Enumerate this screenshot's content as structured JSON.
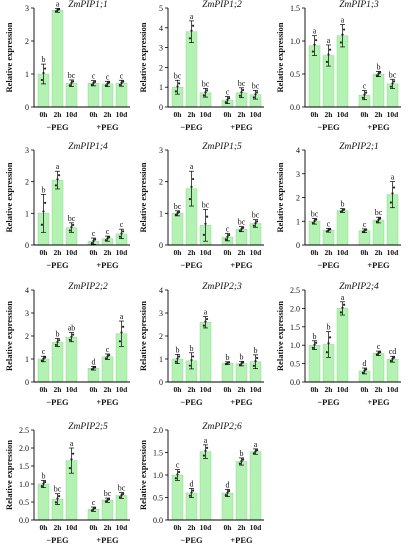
{
  "figure": {
    "bar_color": "#b3f2b3",
    "bar_edge": "#7ad87a",
    "axis_color": "#000000"
  },
  "chart_data": [
    {
      "type": "bar",
      "title": "ZmPIP1;1",
      "ylabel": "Relative expression",
      "ylim": [
        0,
        3
      ],
      "yticks": [
        "0",
        "1",
        "2",
        "3"
      ],
      "categories": [
        "0h",
        "2h",
        "10d",
        "0h",
        "2h",
        "10d"
      ],
      "groups": [
        "−PEG",
        "+PEG"
      ],
      "values": [
        1.0,
        2.93,
        0.72,
        0.72,
        0.7,
        0.72
      ],
      "errors": [
        0.3,
        0.06,
        0.1,
        0.08,
        0.08,
        0.09
      ],
      "letters": [
        "b",
        "a",
        "bc",
        "c",
        "c",
        "c"
      ]
    },
    {
      "type": "bar",
      "title": "ZmPIP1;2",
      "ylabel": "Relative expression",
      "ylim": [
        0,
        5
      ],
      "yticks": [
        "0",
        "1",
        "2",
        "3",
        "4",
        "5"
      ],
      "categories": [
        "0h",
        "2h",
        "10d",
        "0h",
        "2h",
        "10d"
      ],
      "groups": [
        "−PEG",
        "+PEG"
      ],
      "values": [
        1.0,
        3.8,
        0.72,
        0.35,
        0.72,
        0.62
      ],
      "errors": [
        0.35,
        0.55,
        0.22,
        0.18,
        0.25,
        0.22
      ],
      "letters": [
        "bc",
        "a",
        "bc",
        "c",
        "bc",
        "bc"
      ]
    },
    {
      "type": "bar",
      "title": "ZmPIP1;3",
      "ylabel": "Relative expression",
      "ylim": [
        0,
        1.5
      ],
      "yticks": [
        "0.0",
        "0.5",
        "1.0",
        "1.5"
      ],
      "categories": [
        "0h",
        "2h",
        "10d",
        "0h",
        "2h",
        "10d"
      ],
      "groups": [
        "−PEG",
        "+PEG"
      ],
      "values": [
        0.93,
        0.78,
        1.08,
        0.18,
        0.5,
        0.35
      ],
      "errors": [
        0.15,
        0.16,
        0.17,
        0.07,
        0.04,
        0.07
      ],
      "letters": [
        "a",
        "a",
        "a",
        "c",
        "b",
        "bc"
      ]
    },
    {
      "type": "bar",
      "title": "ZmPIP1;4",
      "ylabel": "Relative expression",
      "ylim": [
        0,
        3
      ],
      "yticks": [
        "0",
        "1",
        "2",
        "3"
      ],
      "categories": [
        "0h",
        "2h",
        "10d",
        "0h",
        "2h",
        "10d"
      ],
      "groups": [
        "−PEG",
        "+PEG"
      ],
      "values": [
        1.0,
        2.05,
        0.55,
        0.12,
        0.2,
        0.35
      ],
      "errors": [
        0.6,
        0.28,
        0.15,
        0.1,
        0.08,
        0.15
      ],
      "letters": [
        "b",
        "a",
        "bc",
        "c",
        "c",
        "c"
      ]
    },
    {
      "type": "bar",
      "title": "ZmPIP1;5",
      "ylabel": "Relative expression",
      "ylim": [
        0,
        3
      ],
      "yticks": [
        "0",
        "1",
        "2",
        "3"
      ],
      "categories": [
        "0h",
        "2h",
        "10d",
        "0h",
        "2h",
        "10d"
      ],
      "groups": [
        "−PEG",
        "+PEG"
      ],
      "values": [
        1.0,
        1.78,
        0.62,
        0.25,
        0.5,
        0.68
      ],
      "errors": [
        0.08,
        0.55,
        0.5,
        0.12,
        0.08,
        0.12
      ],
      "letters": [
        "bc",
        "a",
        "bc",
        "c",
        "bc",
        "bc"
      ]
    },
    {
      "type": "bar",
      "title": "ZmPIP2;1",
      "ylabel": "Relative expression",
      "ylim": [
        0,
        4
      ],
      "yticks": [
        "0",
        "1",
        "2",
        "3",
        "4"
      ],
      "categories": [
        "0h",
        "2h",
        "10d",
        "0h",
        "2h",
        "10d"
      ],
      "groups": [
        "−PEG",
        "+PEG"
      ],
      "values": [
        1.0,
        0.62,
        1.45,
        0.6,
        1.05,
        2.12
      ],
      "errors": [
        0.12,
        0.08,
        0.08,
        0.08,
        0.12,
        0.55
      ],
      "letters": [
        "bc",
        "c",
        "b",
        "c",
        "bc",
        "a"
      ]
    },
    {
      "type": "bar",
      "title": "ZmPIP2;2",
      "ylabel": "Relative expression",
      "ylim": [
        0,
        4
      ],
      "yticks": [
        "0",
        "1",
        "2",
        "3",
        "4"
      ],
      "categories": [
        "0h",
        "2h",
        "10d",
        "0h",
        "2h",
        "10d"
      ],
      "groups": [
        "−PEG",
        "+PEG"
      ],
      "values": [
        1.0,
        1.72,
        1.95,
        0.6,
        1.1,
        2.1
      ],
      "errors": [
        0.12,
        0.18,
        0.2,
        0.08,
        0.12,
        0.55
      ],
      "letters": [
        "c",
        "b",
        "ab",
        "d",
        "c",
        "a"
      ]
    },
    {
      "type": "bar",
      "title": "ZmPIP2;3",
      "ylabel": "Relative expression",
      "ylim": [
        0,
        4
      ],
      "yticks": [
        "0",
        "1",
        "2",
        "3",
        "4"
      ],
      "categories": [
        "0h",
        "2h",
        "10d",
        "0h",
        "2h",
        "10d"
      ],
      "groups": [
        "−PEG",
        "+PEG"
      ],
      "values": [
        1.0,
        0.92,
        2.6,
        0.82,
        0.8,
        0.88
      ],
      "errors": [
        0.2,
        0.35,
        0.25,
        0.06,
        0.1,
        0.3
      ],
      "letters": [
        "b",
        "b",
        "a",
        "b",
        "b",
        "b"
      ]
    },
    {
      "type": "bar",
      "title": "ZmPIP2;4",
      "ylabel": "Relative expression",
      "ylim": [
        0,
        2.5
      ],
      "yticks": [
        "0.0",
        "0.5",
        "1.0",
        "1.5",
        "2.0",
        "2.5"
      ],
      "categories": [
        "0h",
        "2h",
        "10d",
        "0h",
        "2h",
        "10d"
      ],
      "groups": [
        "−PEG",
        "+PEG"
      ],
      "values": [
        1.0,
        1.02,
        2.0,
        0.3,
        0.78,
        0.62
      ],
      "errors": [
        0.12,
        0.35,
        0.18,
        0.08,
        0.06,
        0.08
      ],
      "letters": [
        "b",
        "b",
        "a",
        "d",
        "c",
        "cd"
      ]
    },
    {
      "type": "bar",
      "title": "ZmPIP2;5",
      "ylabel": "Relative expression",
      "ylim": [
        0,
        2.5
      ],
      "yticks": [
        "0.0",
        "0.5",
        "1.0",
        "1.5",
        "2.0",
        "2.5"
      ],
      "categories": [
        "0h",
        "2h",
        "10d",
        "0h",
        "2h",
        "10d"
      ],
      "groups": [
        "−PEG",
        "+PEG"
      ],
      "values": [
        1.0,
        0.58,
        1.65,
        0.3,
        0.55,
        0.68
      ],
      "errors": [
        0.1,
        0.15,
        0.35,
        0.06,
        0.06,
        0.08
      ],
      "letters": [
        "b",
        "bc",
        "a",
        "c",
        "bc",
        "bc"
      ]
    },
    {
      "type": "bar",
      "title": "ZmPIP2;6",
      "ylabel": "Relative expression",
      "ylim": [
        0,
        2.0
      ],
      "yticks": [
        "0.0",
        "0.5",
        "1.0",
        "1.5",
        "2.0"
      ],
      "categories": [
        "0h",
        "2h",
        "10d",
        "0h",
        "2h",
        "10d"
      ],
      "groups": [
        "−PEG",
        "+PEG"
      ],
      "values": [
        1.0,
        0.6,
        1.52,
        0.6,
        1.3,
        1.52
      ],
      "errors": [
        0.12,
        0.1,
        0.15,
        0.08,
        0.08,
        0.06
      ],
      "letters": [
        "c",
        "d",
        "a",
        "d",
        "b",
        "a"
      ]
    }
  ]
}
